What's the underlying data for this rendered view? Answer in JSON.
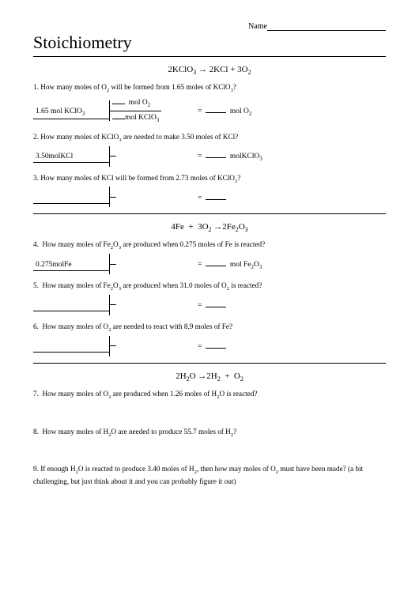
{
  "header": {
    "name_label": "Name",
    "title": "Stoichiometry"
  },
  "section1": {
    "equation_html": "2KClO<sub>3</sub> → 2KCl  +  3O<sub>2</sub>",
    "q1": {
      "text_html": "1. How many moles of O<sub>2</sub> will be formed from 1.65 moles of KClO<sub>3</sub>?",
      "given_html": "1.65 mol KClO<sub>3</sub>",
      "frac_top_html": "<span class='blank-short'></span>&nbsp;&nbsp;mol O<sub>2</sub>",
      "frac_bot_html": "<span class='blank-short'></span>mol KClO<sub>3</sub>",
      "answer_html": "= &nbsp;<span class='blank'></span>&nbsp; mol O<sub>2</sub>"
    },
    "q2": {
      "text_html": "2. How many moles of KClO<sub>3</sub> are needed to make 3.50 moles of KCl?",
      "given_html": "3.50molKCl",
      "frac_top_html": "&nbsp;",
      "frac_bot_html": "&nbsp;",
      "answer_html": "= &nbsp;<span class='blank'></span>&nbsp; molKClO<sub>3</sub>"
    },
    "q3": {
      "text_html": "3. How many moles of KCl will be formed from 2.73 moles of KClO<sub>3</sub>?",
      "given_html": "&nbsp;",
      "frac_top_html": "&nbsp;",
      "frac_bot_html": "&nbsp;",
      "answer_html": "= &nbsp;<span class='blank'></span>"
    }
  },
  "section2": {
    "equation_html": "4Fe&nbsp;&nbsp;+&nbsp;&nbsp;3O<sub>2</sub> →2Fe<sub>2</sub>O<sub>3</sub>",
    "q4": {
      "text_html": "4.&nbsp; How many moles of Fe<sub>2</sub>O<sub>3</sub> are produced when 0.275 moles of Fe is reacted?",
      "given_html": "0.275molFe",
      "frac_top_html": "&nbsp;",
      "frac_bot_html": "&nbsp;",
      "answer_html": "= &nbsp;<span class='blank'></span>&nbsp; mol Fe<sub>2</sub>O<sub>3</sub>"
    },
    "q5": {
      "text_html": "5.&nbsp; How many moles of Fe<sub>2</sub>O<sub>3</sub> are produced when 31.0 moles of O<sub>2</sub> is reacted?",
      "given_html": "&nbsp;",
      "frac_top_html": "&nbsp;",
      "frac_bot_html": "&nbsp;",
      "answer_html": "= &nbsp;<span class='blank'></span>"
    },
    "q6": {
      "text_html": "6.&nbsp; How many moles of O<sub>2</sub> are needed to react with 8.9 moles of Fe?",
      "given_html": "&nbsp;",
      "frac_top_html": "&nbsp;",
      "frac_bot_html": "&nbsp;",
      "answer_html": "= &nbsp;<span class='blank'></span>"
    }
  },
  "section3": {
    "equation_html": "2H<sub>2</sub>O →2H<sub>2</sub>&nbsp;&nbsp;+&nbsp;&nbsp;O<sub>2</sub>",
    "q7": {
      "text_html": "7.&nbsp; How many moles of O<sub>2</sub> are produced when 1.26 moles of H<sub>2</sub>O is reacted?"
    },
    "q8": {
      "text_html": "8.&nbsp; How many moles of H<sub>2</sub>O are needed to produce 55.7 moles of H<sub>2</sub>?"
    },
    "q9": {
      "text_html": "9. If enough H<sub>2</sub>O is reacted to produce 3.40 moles of H<sub>2</sub>, then how may moles of O<sub>2</sub> must have been made? (a bit challenging, but just think about it and you can probably figure it out)"
    }
  }
}
